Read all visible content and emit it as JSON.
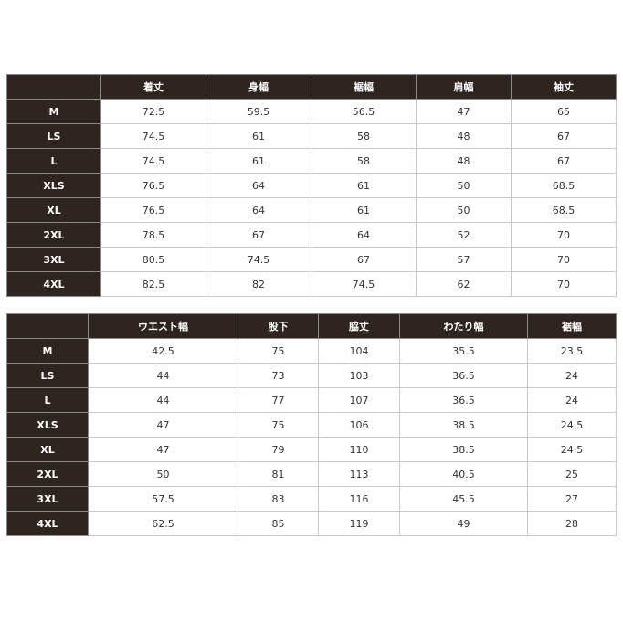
{
  "tables": [
    {
      "headers": [
        "",
        "着丈",
        "身幅",
        "裾幅",
        "肩幅",
        "袖丈"
      ],
      "rows": [
        [
          "M",
          "72.5",
          "59.5",
          "56.5",
          "47",
          "65"
        ],
        [
          "LS",
          "74.5",
          "61",
          "58",
          "48",
          "67"
        ],
        [
          "L",
          "74.5",
          "61",
          "58",
          "48",
          "67"
        ],
        [
          "XLS",
          "76.5",
          "64",
          "61",
          "50",
          "68.5"
        ],
        [
          "XL",
          "76.5",
          "64",
          "61",
          "50",
          "68.5"
        ],
        [
          "2XL",
          "78.5",
          "67",
          "64",
          "52",
          "70"
        ],
        [
          "3XL",
          "80.5",
          "74.5",
          "67",
          "57",
          "70"
        ],
        [
          "4XL",
          "82.5",
          "82",
          "74.5",
          "62",
          "70"
        ]
      ]
    },
    {
      "headers": [
        "",
        "ウエスト幅",
        "股下",
        "脇丈",
        "わたり幅",
        "裾幅"
      ],
      "rows": [
        [
          "M",
          "42.5",
          "75",
          "104",
          "35.5",
          "23.5"
        ],
        [
          "LS",
          "44",
          "73",
          "103",
          "36.5",
          "24"
        ],
        [
          "L",
          "44",
          "77",
          "107",
          "36.5",
          "24"
        ],
        [
          "XLS",
          "47",
          "75",
          "106",
          "38.5",
          "24.5"
        ],
        [
          "XL",
          "47",
          "79",
          "110",
          "38.5",
          "24.5"
        ],
        [
          "2XL",
          "50",
          "81",
          "113",
          "40.5",
          "25"
        ],
        [
          "3XL",
          "57.5",
          "83",
          "116",
          "45.5",
          "27"
        ],
        [
          "4XL",
          "62.5",
          "85",
          "119",
          "49",
          "28"
        ]
      ]
    }
  ]
}
